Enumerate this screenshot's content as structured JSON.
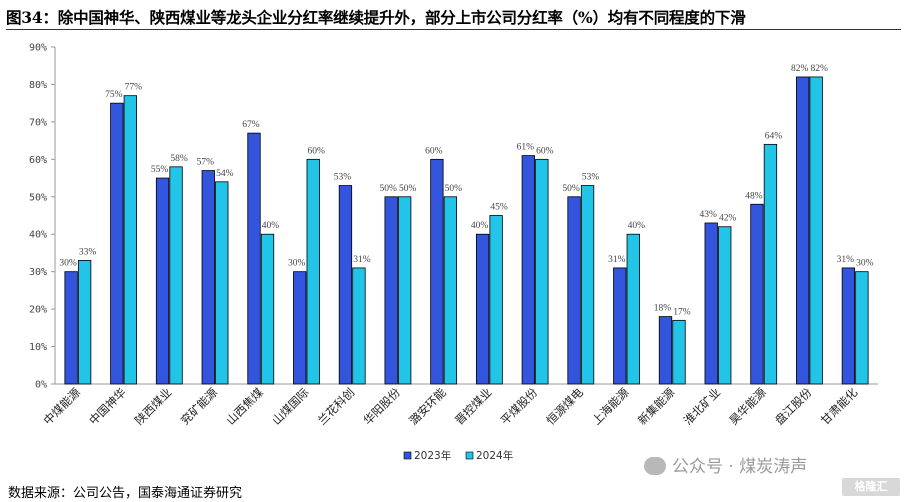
{
  "title": "图34：除中国神华、陕西煤业等龙头企业分红率继续提升外，部分上市公司分红率（%）均有不同程度的下滑",
  "source": "数据来源：公司公告，国泰海通证券研究",
  "watermark": "公众号 · 煤炭涛声",
  "logo_text": "格隆汇",
  "chart_data": {
    "type": "bar",
    "categories": [
      "中煤能源",
      "中国神华",
      "陕西煤业",
      "兖矿能源",
      "山西焦煤",
      "山煤国际",
      "兰花科创",
      "华阳股份",
      "潞安环能",
      "晋控煤业",
      "平煤股份",
      "恒源煤电",
      "上海能源",
      "新集能源",
      "淮北矿业",
      "昊华能源",
      "盘江股份",
      "甘肃能化"
    ],
    "series": [
      {
        "name": "2023年",
        "color": "#3355dd",
        "values": [
          30,
          75,
          55,
          57,
          67,
          30,
          53,
          50,
          60,
          40,
          61,
          50,
          31,
          18,
          43,
          48,
          82,
          31
        ],
        "labels": [
          "30%",
          "75%",
          "55%",
          "57%",
          "67%",
          "30%",
          "53%",
          "50%",
          "60%",
          "40%",
          "61%",
          "50%",
          "31%",
          "18%",
          "43%",
          "48%",
          "82%",
          "31%"
        ]
      },
      {
        "name": "2024年",
        "color": "#22c4e8",
        "values": [
          33,
          77,
          58,
          54,
          40,
          60,
          31,
          50,
          50,
          45,
          60,
          53,
          40,
          17,
          42,
          64,
          82,
          30
        ],
        "labels": [
          "33%",
          "77%",
          "58%",
          "54%",
          "40%",
          "60%",
          "31%",
          "50%",
          "50%",
          "45%",
          "60%",
          "53%",
          "40%",
          "17%",
          "42%",
          "64%",
          "82%",
          "30%"
        ]
      }
    ],
    "y_ticks": [
      "0%",
      "10%",
      "20%",
      "30%",
      "40%",
      "50%",
      "60%",
      "70%",
      "80%",
      "90%"
    ],
    "ylim": [
      0,
      90
    ],
    "legend_position": "bottom-center"
  }
}
